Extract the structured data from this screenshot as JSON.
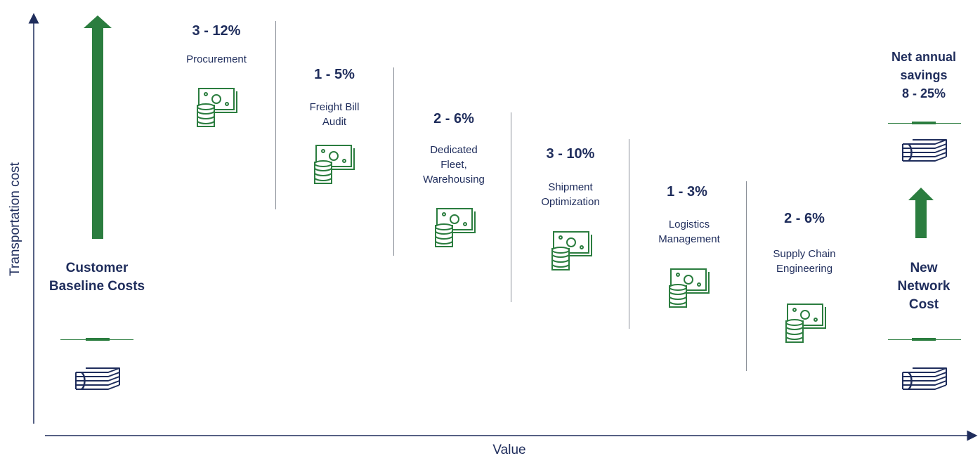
{
  "axes": {
    "y_label": "Transportation cost",
    "x_label": "Value"
  },
  "baseline": {
    "label_line1": "Customer",
    "label_line2": "Baseline Costs"
  },
  "steps": [
    {
      "percent": "3 - 12%",
      "label_lines": [
        "Procurement"
      ]
    },
    {
      "percent": "1 - 5%",
      "label_lines": [
        "Freight Bill",
        "Audit"
      ]
    },
    {
      "percent": "2 - 6%",
      "label_lines": [
        "Dedicated",
        "Fleet,",
        "Warehousing"
      ]
    },
    {
      "percent": "3 - 10%",
      "label_lines": [
        "Shipment",
        "Optimization"
      ]
    },
    {
      "percent": "1 - 3%",
      "label_lines": [
        "Logistics",
        "Management"
      ]
    },
    {
      "percent": "2 - 6%",
      "label_lines": [
        "Supply Chain",
        "Engineering"
      ]
    }
  ],
  "savings": {
    "line1": "Net annual",
    "line2": "savings",
    "line3": "8 - 25%"
  },
  "new_cost": {
    "line1": "New",
    "line2": "Network",
    "line3": "Cost"
  },
  "colors": {
    "navy": "#1f2d5c",
    "green": "#2b7d3f",
    "divider": "#8a8f98"
  },
  "icons": {
    "savings_icon": "cash-coins-icon",
    "cost_icon": "money-stack-icon",
    "arrow_icon": "up-arrow-icon"
  }
}
